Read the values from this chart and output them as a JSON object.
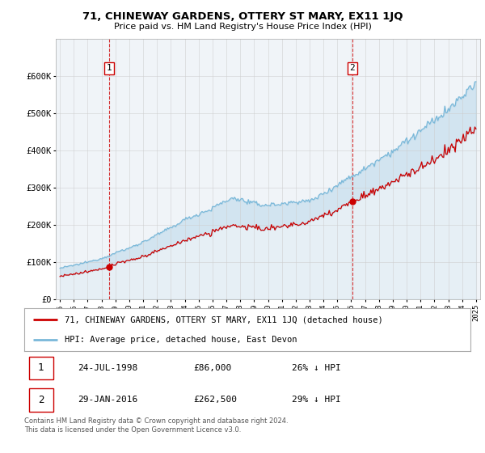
{
  "title": "71, CHINEWAY GARDENS, OTTERY ST MARY, EX11 1JQ",
  "subtitle": "Price paid vs. HM Land Registry's House Price Index (HPI)",
  "ylim": [
    0,
    700000
  ],
  "yticks": [
    0,
    100000,
    200000,
    300000,
    400000,
    500000,
    600000
  ],
  "ytick_labels": [
    "£0",
    "£100K",
    "£200K",
    "£300K",
    "£400K",
    "£500K",
    "£600K"
  ],
  "purchase1": {
    "date": 1998.56,
    "price": 86000
  },
  "purchase2": {
    "date": 2016.08,
    "price": 262500
  },
  "legend_line1": "71, CHINEWAY GARDENS, OTTERY ST MARY, EX11 1JQ (detached house)",
  "legend_line2": "HPI: Average price, detached house, East Devon",
  "note1_label": "1",
  "note1_date": "24-JUL-1998",
  "note1_price": "£86,000",
  "note1_hpi": "26% ↓ HPI",
  "note2_label": "2",
  "note2_date": "29-JAN-2016",
  "note2_price": "£262,500",
  "note2_hpi": "29% ↓ HPI",
  "footer": "Contains HM Land Registry data © Crown copyright and database right 2024.\nThis data is licensed under the Open Government Licence v3.0.",
  "hpi_color": "#7ab8d9",
  "price_color": "#cc0000",
  "fill_color": "#ddeef7",
  "bg_color": "#ffffff",
  "grid_color": "#cccccc"
}
